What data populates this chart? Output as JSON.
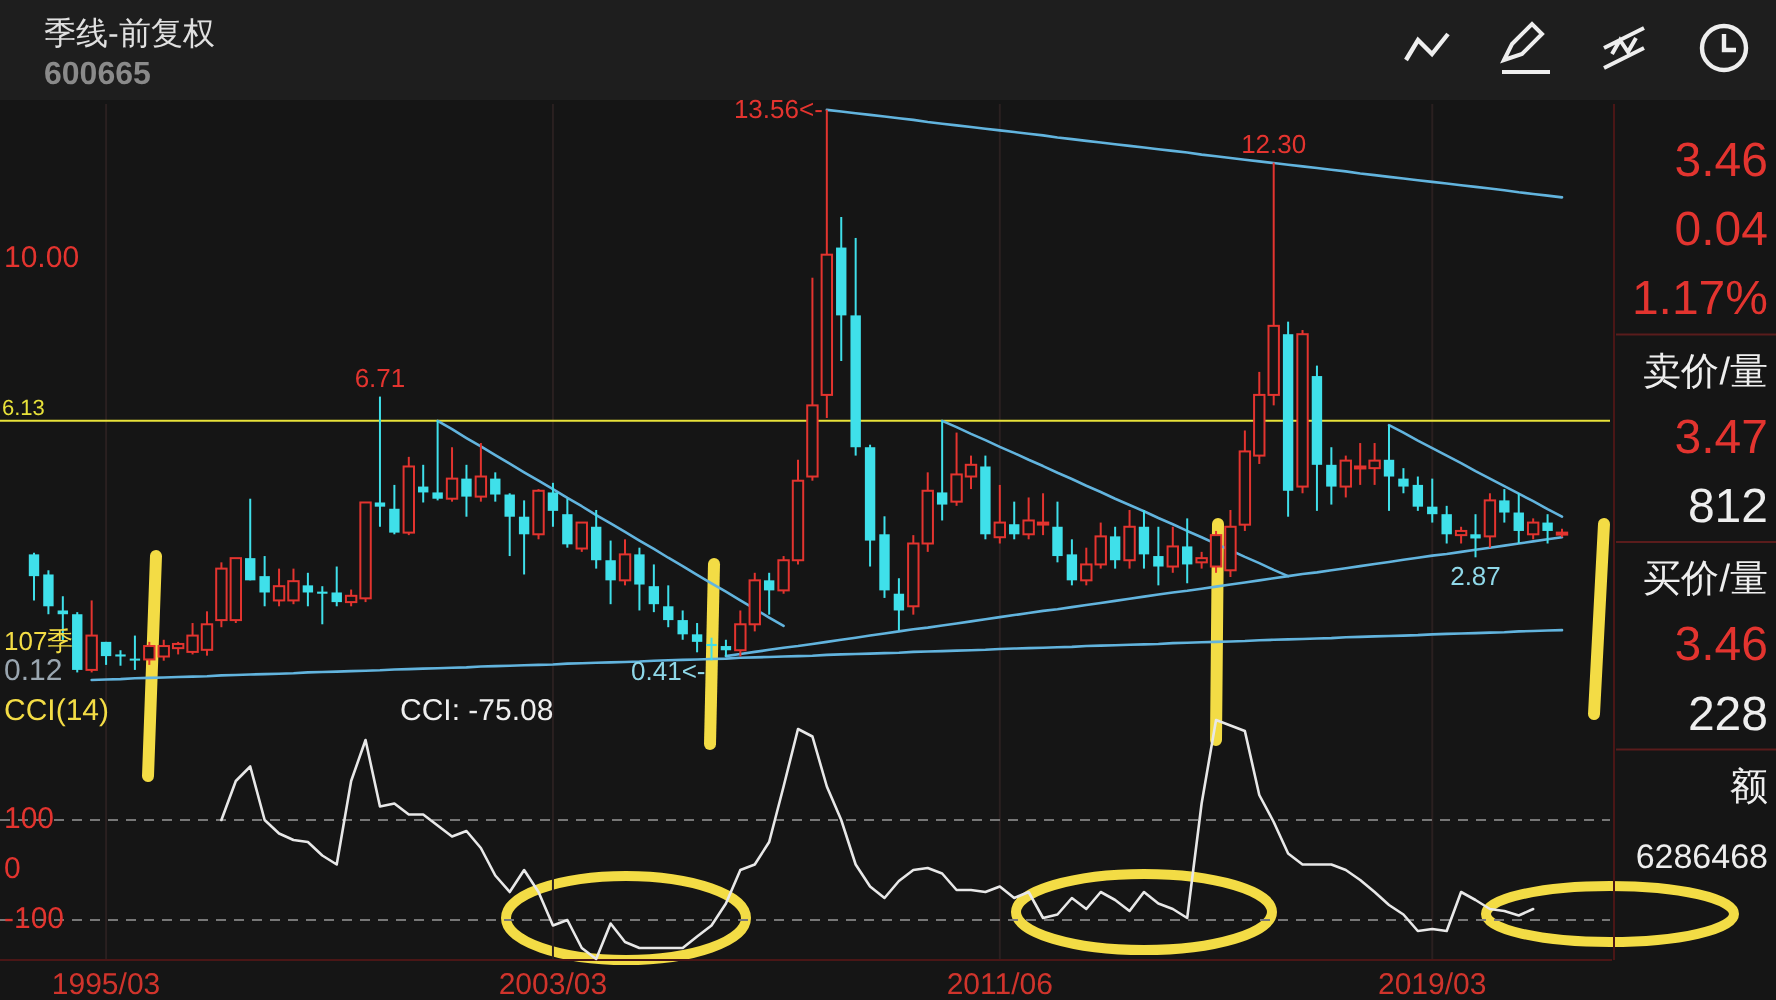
{
  "chart_data": [
    {
      "type": "candlestick",
      "title": "季线-前复权",
      "subtitle": "600665",
      "tick_labels": "y",
      "grid": "x",
      "categories": [
        null,
        null,
        null,
        null,
        null,
        "1995/03",
        null,
        null,
        null,
        null,
        null,
        null,
        null,
        null,
        null,
        null,
        null,
        null,
        null,
        null,
        null,
        null,
        null,
        null,
        null,
        null,
        null,
        null,
        null,
        null,
        null,
        null,
        null,
        null,
        null,
        null,
        "2003/03",
        null,
        null,
        null,
        null,
        null,
        null,
        null,
        null,
        null,
        null,
        null,
        null,
        null,
        null,
        null,
        null,
        null,
        null,
        null,
        null,
        null,
        null,
        null,
        null,
        null,
        null,
        null,
        null,
        null,
        null,
        "2011/06",
        null,
        null,
        null,
        null,
        null,
        null,
        null,
        null,
        null,
        null,
        null,
        null,
        null,
        null,
        null,
        null,
        null,
        null,
        null,
        null,
        null,
        null,
        null,
        null,
        null,
        null,
        null,
        null,
        null,
        "2019/03",
        null,
        null,
        null,
        null,
        null,
        null,
        null,
        null,
        null
      ],
      "ylim": [
        -0.3,
        13.7
      ],
      "yticks": [
        {
          "value": 0.12,
          "label": "0.12"
        },
        {
          "value": 10,
          "label": "10.00"
        }
      ],
      "ref_lines": [
        {
          "axis": "y",
          "value": 6.13,
          "label": "6.13",
          "color": "#e8e23a"
        }
      ],
      "ohlc": [
        [
          2.94,
          2.98,
          1.84,
          2.42
        ],
        [
          2.46,
          2.56,
          1.51,
          1.7
        ],
        [
          1.6,
          1.94,
          0.89,
          1.51
        ],
        [
          1.51,
          1.56,
          0.12,
          0.18
        ],
        [
          0.18,
          1.84,
          0.12,
          1.0
        ],
        [
          0.85,
          0.85,
          0.3,
          0.51
        ],
        [
          0.55,
          0.65,
          0.28,
          0.5
        ],
        [
          0.45,
          1.0,
          0.18,
          0.43
        ],
        [
          0.43,
          0.85,
          0.3,
          0.75
        ],
        [
          0.5,
          0.9,
          0.4,
          0.75
        ],
        [
          0.7,
          0.85,
          0.55,
          0.8
        ],
        [
          0.61,
          1.3,
          0.55,
          1.0
        ],
        [
          0.66,
          1.58,
          0.52,
          1.27
        ],
        [
          1.37,
          2.75,
          1.2,
          2.6
        ],
        [
          1.37,
          2.85,
          1.3,
          2.85
        ],
        [
          2.85,
          4.27,
          2.32,
          2.32
        ],
        [
          2.42,
          2.9,
          1.7,
          2.03
        ],
        [
          1.84,
          2.6,
          1.7,
          2.18
        ],
        [
          1.84,
          2.6,
          1.75,
          2.3
        ],
        [
          2.2,
          2.5,
          1.7,
          2.03
        ],
        [
          2.05,
          2.18,
          1.27,
          2.0
        ],
        [
          2.03,
          2.65,
          1.7,
          1.8
        ],
        [
          1.8,
          2.1,
          1.7,
          1.95
        ],
        [
          1.89,
          4.18,
          1.8,
          4.18
        ],
        [
          4.18,
          6.71,
          3.6,
          4.08
        ],
        [
          4.03,
          4.6,
          3.42,
          3.46
        ],
        [
          3.46,
          5.27,
          3.4,
          5.04
        ],
        [
          4.56,
          5.08,
          4.18,
          4.42
        ],
        [
          4.42,
          6.13,
          4.23,
          4.27
        ],
        [
          4.27,
          5.5,
          4.2,
          4.75
        ],
        [
          4.75,
          5.08,
          3.84,
          4.32
        ],
        [
          4.32,
          5.6,
          4.2,
          4.8
        ],
        [
          4.75,
          4.9,
          4.2,
          4.37
        ],
        [
          4.37,
          4.4,
          2.9,
          3.84
        ],
        [
          3.84,
          4.23,
          2.46,
          3.42
        ],
        [
          3.42,
          4.5,
          3.3,
          4.46
        ],
        [
          4.42,
          4.65,
          3.6,
          3.98
        ],
        [
          3.9,
          4.27,
          3.1,
          3.18
        ],
        [
          3.08,
          3.7,
          3.0,
          3.7
        ],
        [
          3.6,
          4.0,
          2.6,
          2.8
        ],
        [
          2.8,
          3.27,
          1.75,
          2.32
        ],
        [
          2.32,
          3.3,
          2.2,
          2.94
        ],
        [
          2.94,
          3.1,
          1.6,
          2.22
        ],
        [
          2.18,
          2.7,
          1.56,
          1.75
        ],
        [
          1.7,
          2.2,
          1.2,
          1.37
        ],
        [
          1.37,
          1.6,
          0.9,
          1.03
        ],
        [
          1.03,
          1.3,
          0.6,
          0.85
        ],
        [
          0.8,
          0.95,
          0.41,
          0.75
        ],
        [
          0.75,
          0.9,
          0.5,
          0.65
        ],
        [
          0.65,
          1.6,
          0.5,
          1.27
        ],
        [
          1.27,
          2.5,
          1.1,
          2.32
        ],
        [
          2.32,
          2.5,
          1.5,
          2.08
        ],
        [
          2.08,
          2.9,
          2.0,
          2.8
        ],
        [
          2.8,
          5.2,
          2.7,
          4.7
        ],
        [
          4.8,
          9.55,
          4.7,
          6.5
        ],
        [
          6.75,
          13.56,
          6.2,
          10.1
        ],
        [
          10.27,
          11.0,
          7.56,
          8.65
        ],
        [
          8.65,
          10.5,
          5.3,
          5.5
        ],
        [
          5.5,
          5.56,
          2.65,
          3.27
        ],
        [
          3.42,
          3.85,
          1.9,
          2.08
        ],
        [
          2.0,
          2.37,
          1.13,
          1.6
        ],
        [
          1.7,
          3.4,
          1.5,
          3.2
        ],
        [
          3.2,
          4.9,
          3.0,
          4.46
        ],
        [
          4.42,
          6.13,
          3.75,
          4.13
        ],
        [
          4.2,
          5.85,
          4.1,
          4.85
        ],
        [
          4.8,
          5.3,
          4.5,
          5.08
        ],
        [
          5.04,
          5.3,
          3.3,
          3.42
        ],
        [
          3.35,
          4.6,
          3.2,
          3.7
        ],
        [
          3.66,
          4.2,
          3.3,
          3.42
        ],
        [
          3.42,
          4.3,
          3.3,
          3.75
        ],
        [
          3.66,
          4.4,
          3.4,
          3.7
        ],
        [
          3.6,
          4.2,
          2.75,
          2.9
        ],
        [
          2.94,
          3.3,
          2.2,
          2.32
        ],
        [
          2.32,
          3.1,
          2.2,
          2.7
        ],
        [
          2.7,
          3.7,
          2.6,
          3.37
        ],
        [
          3.37,
          3.6,
          2.6,
          2.8
        ],
        [
          2.8,
          4.0,
          2.6,
          3.6
        ],
        [
          3.6,
          4.0,
          2.6,
          2.94
        ],
        [
          2.9,
          3.6,
          2.2,
          2.65
        ],
        [
          2.65,
          3.6,
          2.5,
          3.13
        ],
        [
          3.13,
          3.8,
          2.25,
          2.7
        ],
        [
          2.75,
          3.0,
          2.6,
          2.85
        ],
        [
          2.65,
          3.5,
          2.5,
          3.4
        ],
        [
          2.56,
          4.0,
          2.4,
          3.6
        ],
        [
          3.65,
          5.9,
          3.5,
          5.4
        ],
        [
          5.3,
          7.3,
          5.1,
          6.75
        ],
        [
          6.75,
          12.3,
          6.5,
          8.4
        ],
        [
          8.2,
          8.5,
          3.84,
          4.46
        ],
        [
          4.56,
          8.3,
          4.4,
          8.2
        ],
        [
          7.2,
          7.45,
          3.98,
          5.08
        ],
        [
          5.08,
          5.5,
          4.13,
          4.56
        ],
        [
          4.56,
          5.3,
          4.3,
          5.18
        ],
        [
          5.0,
          5.6,
          4.6,
          5.04
        ],
        [
          5.0,
          5.6,
          4.6,
          5.18
        ],
        [
          5.2,
          6.03,
          3.98,
          4.8
        ],
        [
          4.75,
          5.0,
          4.4,
          4.56
        ],
        [
          4.6,
          4.8,
          3.98,
          4.08
        ],
        [
          4.08,
          4.75,
          3.7,
          3.9
        ],
        [
          3.9,
          4.1,
          3.2,
          3.42
        ],
        [
          3.4,
          3.6,
          3.2,
          3.5
        ],
        [
          3.42,
          3.9,
          2.87,
          3.32
        ],
        [
          3.37,
          4.4,
          3.1,
          4.23
        ],
        [
          4.23,
          4.5,
          3.7,
          3.94
        ],
        [
          3.94,
          4.4,
          3.2,
          3.5
        ],
        [
          3.42,
          3.8,
          3.3,
          3.7
        ],
        [
          3.7,
          3.9,
          3.2,
          3.5
        ],
        [
          3.42,
          3.55,
          3.35,
          3.46
        ]
      ],
      "series": [
        {
          "type": "line",
          "color": "#62b4de",
          "values": [
            null,
            null,
            null,
            null,
            null,
            null,
            null,
            null,
            null,
            null,
            null,
            null,
            null,
            null,
            null,
            null,
            null,
            null,
            null,
            null,
            null,
            null,
            null,
            null,
            null,
            null,
            null,
            null,
            6.13,
            5.93,
            5.72,
            5.52,
            5.31,
            5.11,
            4.9,
            4.7,
            4.5,
            4.29,
            4.09,
            3.88,
            3.68,
            3.48,
            3.27,
            3.07,
            2.86,
            2.66,
            2.45,
            2.25,
            2.05,
            1.84,
            1.64,
            1.43,
            1.23,
            null,
            null,
            null,
            null,
            null,
            null,
            null,
            null,
            null,
            null,
            null,
            null,
            null,
            null,
            null,
            null,
            null,
            null,
            null,
            null,
            null,
            null,
            null,
            null,
            null,
            null,
            null,
            null,
            null,
            null,
            null,
            null,
            null,
            null,
            null,
            null,
            null,
            null,
            null,
            null,
            null,
            null,
            null,
            null,
            null,
            null,
            null,
            null,
            null,
            null,
            null,
            null,
            null,
            null
          ]
        },
        {
          "type": "line",
          "color": "#62b4de",
          "values": [
            null,
            null,
            null,
            null,
            -0.06,
            -0.05,
            -0.04,
            -0.02,
            -0.01,
            0.0,
            0.01,
            0.02,
            0.03,
            0.05,
            0.06,
            0.07,
            0.08,
            0.09,
            0.1,
            0.12,
            0.13,
            0.14,
            0.15,
            0.16,
            0.17,
            0.19,
            0.2,
            0.21,
            0.22,
            0.23,
            0.24,
            0.26,
            0.27,
            0.28,
            0.29,
            0.3,
            0.31,
            0.33,
            0.34,
            0.35,
            0.36,
            0.37,
            0.38,
            0.4,
            0.41,
            0.42,
            0.43,
            0.44,
            0.45,
            0.47,
            0.48,
            0.49,
            0.5,
            0.51,
            0.52,
            0.54,
            0.55,
            0.56,
            0.57,
            0.58,
            0.59,
            0.61,
            0.62,
            0.63,
            0.64,
            0.65,
            0.66,
            0.68,
            0.69,
            0.7,
            0.71,
            0.72,
            0.73,
            0.75,
            0.76,
            0.77,
            0.78,
            0.79,
            0.8,
            0.82,
            0.83,
            0.84,
            0.85,
            0.86,
            0.87,
            0.89,
            0.9,
            0.91,
            0.92,
            0.93,
            0.94,
            0.96,
            0.97,
            0.98,
            0.99,
            1.0,
            1.01,
            1.03,
            1.04,
            1.05,
            1.06,
            1.07,
            1.08,
            1.1,
            1.11,
            1.12,
            1.13
          ]
        },
        {
          "type": "line",
          "color": "#62b4de",
          "values": [
            null,
            null,
            null,
            null,
            null,
            null,
            null,
            null,
            null,
            null,
            null,
            null,
            null,
            null,
            null,
            null,
            null,
            null,
            null,
            null,
            null,
            null,
            null,
            null,
            null,
            null,
            null,
            null,
            null,
            null,
            null,
            null,
            null,
            null,
            null,
            null,
            null,
            null,
            null,
            null,
            null,
            null,
            null,
            null,
            null,
            null,
            null,
            null,
            0.51,
            0.56,
            0.61,
            0.66,
            0.71,
            0.75,
            0.8,
            0.85,
            0.9,
            0.95,
            1.0,
            1.05,
            1.1,
            1.15,
            1.19,
            1.24,
            1.29,
            1.34,
            1.39,
            1.44,
            1.49,
            1.54,
            1.59,
            1.63,
            1.68,
            1.73,
            1.78,
            1.83,
            1.88,
            1.93,
            1.98,
            2.03,
            2.07,
            2.12,
            2.17,
            2.22,
            2.27,
            2.32,
            2.37,
            2.42,
            2.47,
            2.51,
            2.56,
            2.61,
            2.66,
            2.71,
            2.76,
            2.81,
            2.86,
            2.91,
            2.95,
            3.0,
            3.05,
            3.1,
            3.15,
            3.2,
            3.25,
            3.3,
            3.35
          ]
        },
        {
          "type": "line",
          "color": "#62b4de",
          "values": [
            null,
            null,
            null,
            null,
            null,
            null,
            null,
            null,
            null,
            null,
            null,
            null,
            null,
            null,
            null,
            null,
            null,
            null,
            null,
            null,
            null,
            null,
            null,
            null,
            null,
            null,
            null,
            null,
            null,
            null,
            null,
            null,
            null,
            null,
            null,
            null,
            null,
            null,
            null,
            null,
            null,
            null,
            null,
            null,
            null,
            null,
            null,
            null,
            null,
            null,
            null,
            null,
            null,
            null,
            null,
            null,
            null,
            null,
            null,
            null,
            null,
            null,
            null,
            6.13,
            5.98,
            5.82,
            5.67,
            5.51,
            5.36,
            5.2,
            5.05,
            4.89,
            4.74,
            4.58,
            4.43,
            4.27,
            4.12,
            3.97,
            3.81,
            3.66,
            3.5,
            3.35,
            3.19,
            3.04,
            2.88,
            2.73,
            2.57,
            2.42,
            null,
            null,
            null,
            null,
            null,
            null,
            null,
            null,
            null,
            null,
            null,
            null,
            null,
            null,
            null,
            null,
            null,
            null,
            null
          ]
        },
        {
          "type": "line",
          "color": "#62b4de",
          "values": [
            null,
            null,
            null,
            null,
            null,
            null,
            null,
            null,
            null,
            null,
            null,
            null,
            null,
            null,
            null,
            null,
            null,
            null,
            null,
            null,
            null,
            null,
            null,
            null,
            null,
            null,
            null,
            null,
            null,
            null,
            null,
            null,
            null,
            null,
            null,
            null,
            null,
            null,
            null,
            null,
            null,
            null,
            null,
            null,
            null,
            null,
            null,
            null,
            null,
            null,
            null,
            null,
            null,
            null,
            null,
            null,
            null,
            null,
            null,
            null,
            null,
            null,
            null,
            null,
            null,
            null,
            null,
            null,
            null,
            null,
            null,
            null,
            null,
            null,
            null,
            null,
            null,
            null,
            null,
            null,
            null,
            null,
            null,
            null,
            null,
            null,
            null,
            null,
            null,
            null,
            null,
            null,
            null,
            null,
            6.03,
            5.85,
            5.66,
            5.48,
            5.3,
            5.12,
            4.93,
            4.75,
            4.57,
            4.39,
            4.21,
            4.02,
            3.84
          ]
        },
        {
          "type": "line",
          "color": "#62b4de",
          "values": [
            null,
            null,
            null,
            null,
            null,
            null,
            null,
            null,
            null,
            null,
            null,
            null,
            null,
            null,
            null,
            null,
            null,
            null,
            null,
            null,
            null,
            null,
            null,
            null,
            null,
            null,
            null,
            null,
            null,
            null,
            null,
            null,
            null,
            null,
            null,
            null,
            null,
            null,
            null,
            null,
            null,
            null,
            null,
            null,
            null,
            null,
            null,
            null,
            null,
            null,
            null,
            null,
            null,
            null,
            null,
            13.56,
            13.52,
            13.48,
            13.44,
            13.4,
            13.36,
            13.32,
            13.27,
            13.23,
            13.19,
            13.15,
            13.11,
            13.07,
            13.03,
            12.99,
            12.95,
            12.9,
            12.86,
            12.82,
            12.78,
            12.74,
            12.7,
            12.66,
            12.62,
            12.58,
            12.54,
            12.49,
            12.45,
            12.41,
            12.37,
            12.33,
            12.29,
            12.25,
            12.21,
            12.17,
            12.13,
            12.09,
            12.04,
            12.0,
            11.96,
            11.92,
            11.88,
            11.84,
            11.8,
            11.76,
            11.72,
            11.68,
            11.64,
            11.59,
            11.55,
            11.51,
            11.47
          ]
        }
      ],
      "annotations": [
        "13.56<-",
        {
          "text": "6.71",
          "y": 6.71
        },
        {
          "text": "0.41<-",
          "y": 0.41
        },
        {
          "text": "12.30",
          "y": 12.3
        },
        {
          "text": "2.87",
          "y": 2.87
        },
        "107季"
      ]
    },
    {
      "type": "line",
      "title": "CCI(14)",
      "grid": "x",
      "categories": [
        null,
        null,
        null,
        null,
        null,
        "1995/03",
        null,
        null,
        null,
        null,
        null,
        null,
        null,
        null,
        null,
        null,
        null,
        null,
        null,
        null,
        null,
        null,
        null,
        null,
        null,
        null,
        null,
        null,
        null,
        null,
        null,
        null,
        null,
        null,
        null,
        null,
        "2003/03",
        null,
        null,
        null,
        null,
        null,
        null,
        null,
        null,
        null,
        null,
        null,
        null,
        null,
        null,
        null,
        null,
        null,
        null,
        null,
        null,
        null,
        null,
        null,
        null,
        null,
        null,
        null,
        null,
        null,
        null,
        "2011/06",
        null,
        null,
        null,
        null,
        null,
        null,
        null,
        null,
        null,
        null,
        null,
        null,
        null,
        null,
        null,
        null,
        null,
        null,
        null,
        null,
        null,
        null,
        null,
        null,
        null,
        null,
        null,
        null,
        null,
        "2019/03",
        null,
        null,
        null,
        null,
        null,
        null,
        null,
        null,
        null
      ],
      "ylim": [
        -180,
        360
      ],
      "yticks": [
        -100,
        0,
        100
      ],
      "ref_lines": [
        {
          "axis": "y",
          "value": 100,
          "color": "#777777",
          "line_style": "dashed"
        },
        {
          "axis": "y",
          "value": -100,
          "color": "#777777",
          "line_style": "dashed"
        }
      ],
      "series": [
        {
          "color": "#e8e8e8",
          "values": [
            null,
            null,
            null,
            null,
            null,
            null,
            null,
            null,
            null,
            null,
            null,
            null,
            null,
            100,
            178,
            207,
            100,
            73,
            60,
            56,
            29,
            11,
            178,
            260,
            127,
            133,
            111,
            111,
            89,
            67,
            78,
            44,
            -11,
            -44,
            0,
            -44,
            -111,
            -100,
            -156,
            -178,
            -107,
            -144,
            -156,
            -156,
            -156,
            -156,
            -133,
            -111,
            -67,
            0,
            11,
            56,
            167,
            282,
            267,
            167,
            100,
            11,
            -33,
            -56,
            -22,
            0,
            4,
            -7,
            -40,
            -40,
            -44,
            -33,
            -56,
            -44,
            -96,
            -89,
            -56,
            -78,
            -44,
            -60,
            -82,
            -44,
            -67,
            -78,
            -96,
            133,
            300,
            289,
            278,
            150,
            96,
            33,
            11,
            11,
            11,
            0,
            -20,
            -44,
            -70,
            -89,
            -122,
            -118,
            -122,
            -44,
            -60,
            -78,
            -82,
            -91,
            -78,
            null,
            null
          ]
        }
      ],
      "annotations": [
        "CCI: -75.08"
      ]
    },
    {
      "type": "other",
      "annotations": [
        "3.46",
        "0.04",
        "1.17%",
        "卖价/量",
        "3.47",
        "812",
        "买价/量",
        "3.46",
        "228",
        "额",
        "6286468"
      ]
    }
  ]
}
